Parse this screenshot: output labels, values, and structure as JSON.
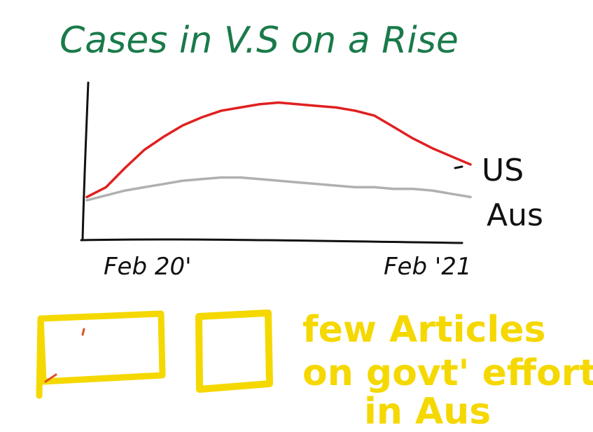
{
  "chart_data": {
    "type": "line",
    "title": "Cases in V.S on a Rise",
    "categories": [
      "Feb 20'",
      "Feb '21"
    ],
    "x": [
      0,
      0.05,
      0.1,
      0.15,
      0.2,
      0.25,
      0.3,
      0.35,
      0.4,
      0.45,
      0.5,
      0.55,
      0.6,
      0.65,
      0.7,
      0.75,
      0.8,
      0.85,
      0.9,
      0.95,
      1.0
    ],
    "series": [
      {
        "name": "US",
        "color": "#e02020",
        "values": [
          8,
          14,
          26,
          37,
          45,
          52,
          57,
          61,
          63,
          65,
          66,
          65,
          64,
          63,
          61,
          58,
          51,
          44,
          38,
          33,
          28
        ]
      },
      {
        "name": "Aus",
        "color": "#b0b0b0",
        "values": [
          6,
          9,
          12,
          14,
          16,
          18,
          19,
          20,
          20,
          19,
          18,
          17,
          16,
          15,
          14,
          14,
          13,
          13,
          12,
          10,
          8
        ]
      }
    ],
    "xlabel": "",
    "ylabel": "",
    "ylim": [
      0,
      100
    ],
    "grid": false,
    "legend": "right"
  },
  "annotation": {
    "text": "few Articles on govt' efforts in Aus",
    "color": "#f5d800"
  },
  "title_color": "#1a7a4a",
  "sketch_boxes": [
    {
      "name": "wide-box"
    },
    {
      "name": "square-box"
    }
  ]
}
